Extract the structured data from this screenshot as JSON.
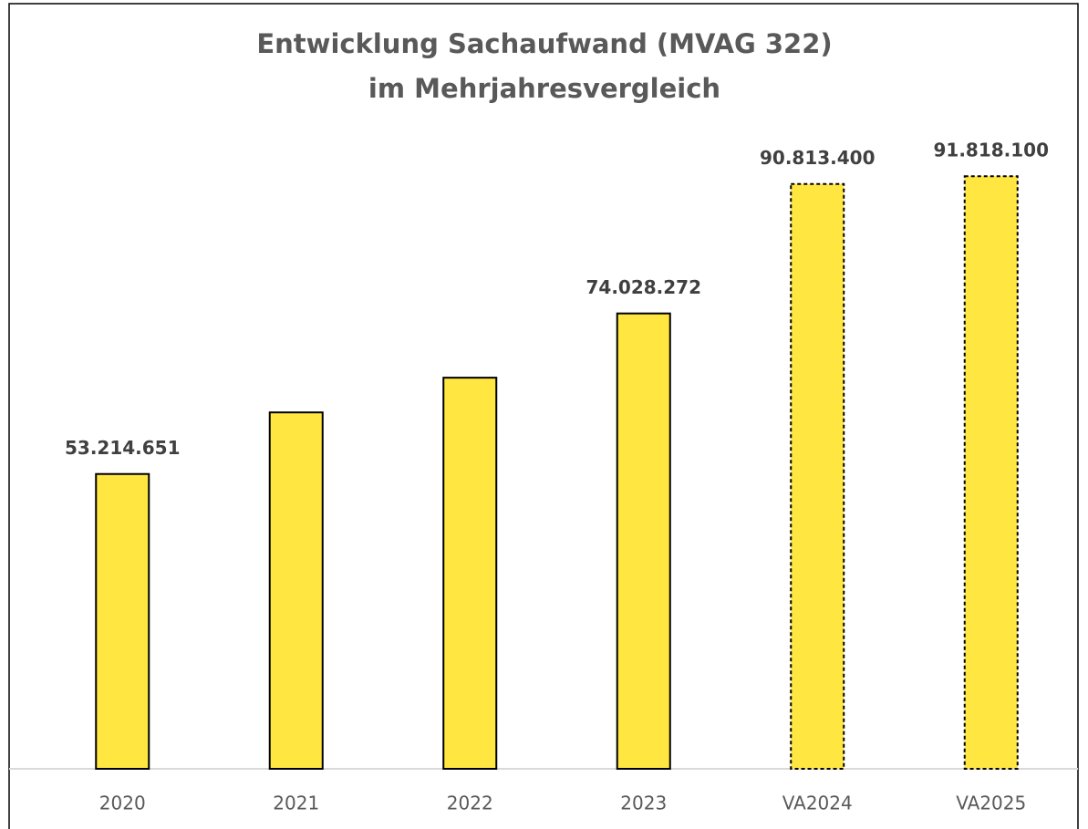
{
  "chart_data": {
    "type": "bar",
    "title": [
      "Entwicklung Sachaufwand (MVAG 322)",
      "im Mehrjahresvergleich"
    ],
    "categories": [
      "2020",
      "2021",
      "2022",
      "2023",
      "VA2024",
      "VA2025"
    ],
    "values": [
      53214651,
      61200000,
      65700000,
      74028272,
      90813400,
      91818100
    ],
    "value_labels": [
      "53.214.651",
      null,
      null,
      "74.028.272",
      "90.813.400",
      "91.818.100"
    ],
    "color": "#ffe640",
    "border_styles": [
      "solid",
      "solid",
      "solid",
      "solid",
      "dashed",
      "dashed"
    ],
    "ylim": [
      15000000,
      100000000
    ],
    "grid": false
  }
}
